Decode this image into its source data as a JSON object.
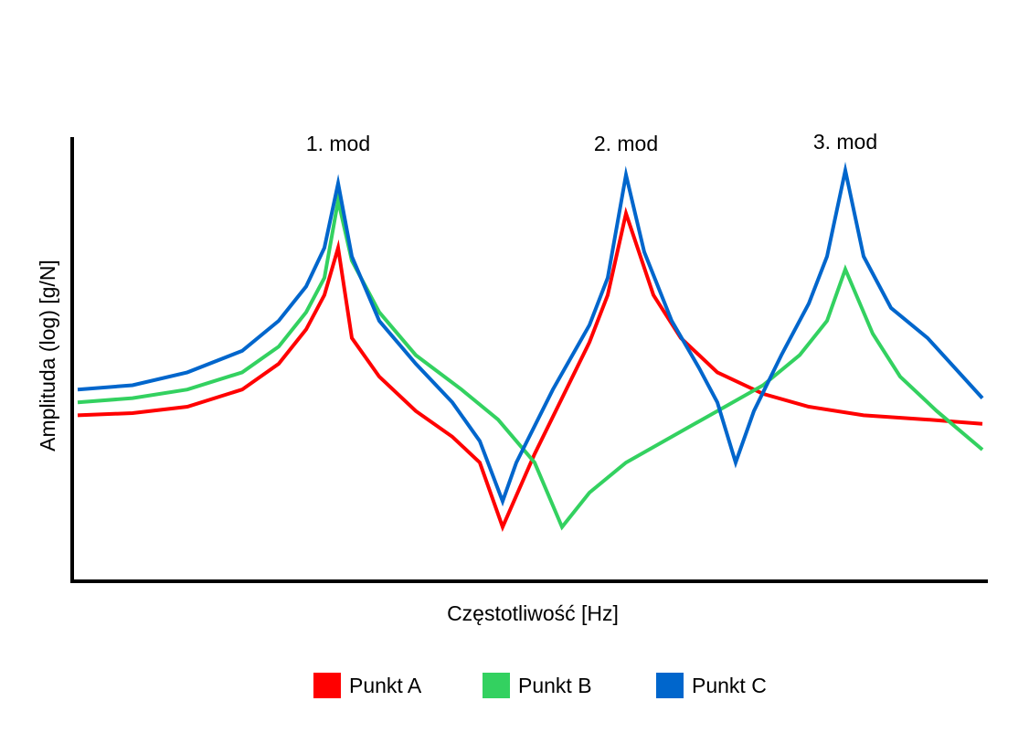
{
  "chart_data": {
    "type": "line",
    "title": "",
    "xlabel": "Częstotliwość [Hz]",
    "ylabel": "Amplituda (log) [g/N]",
    "x_ticks": "none",
    "y_ticks": "none",
    "grid": false,
    "legend_position": "bottom-center",
    "annotations": [
      {
        "text": "1. mod",
        "x": 0.285
      },
      {
        "text": "2. mod",
        "x": 0.6
      },
      {
        "text": "3. mod",
        "x": 0.84
      }
    ],
    "series": [
      {
        "name": "Punkt A",
        "color": "#ff0000",
        "points": [
          [
            0.0,
            0.38
          ],
          [
            0.06,
            0.385
          ],
          [
            0.12,
            0.4
          ],
          [
            0.18,
            0.44
          ],
          [
            0.22,
            0.5
          ],
          [
            0.25,
            0.58
          ],
          [
            0.27,
            0.66
          ],
          [
            0.285,
            0.77
          ],
          [
            0.3,
            0.56
          ],
          [
            0.33,
            0.47
          ],
          [
            0.37,
            0.39
          ],
          [
            0.41,
            0.33
          ],
          [
            0.44,
            0.27
          ],
          [
            0.465,
            0.12
          ],
          [
            0.5,
            0.29
          ],
          [
            0.53,
            0.42
          ],
          [
            0.56,
            0.55
          ],
          [
            0.58,
            0.66
          ],
          [
            0.6,
            0.85
          ],
          [
            0.63,
            0.66
          ],
          [
            0.66,
            0.56
          ],
          [
            0.7,
            0.48
          ],
          [
            0.75,
            0.43
          ],
          [
            0.8,
            0.4
          ],
          [
            0.86,
            0.38
          ],
          [
            0.93,
            0.37
          ],
          [
            0.99,
            0.36
          ]
        ]
      },
      {
        "name": "Punkt B",
        "color": "#33d160",
        "points": [
          [
            0.0,
            0.41
          ],
          [
            0.06,
            0.42
          ],
          [
            0.12,
            0.44
          ],
          [
            0.18,
            0.48
          ],
          [
            0.22,
            0.54
          ],
          [
            0.25,
            0.62
          ],
          [
            0.27,
            0.7
          ],
          [
            0.285,
            0.88
          ],
          [
            0.3,
            0.74
          ],
          [
            0.33,
            0.62
          ],
          [
            0.37,
            0.52
          ],
          [
            0.42,
            0.44
          ],
          [
            0.46,
            0.37
          ],
          [
            0.5,
            0.27
          ],
          [
            0.53,
            0.12
          ],
          [
            0.56,
            0.2
          ],
          [
            0.6,
            0.27
          ],
          [
            0.65,
            0.33
          ],
          [
            0.7,
            0.39
          ],
          [
            0.75,
            0.45
          ],
          [
            0.79,
            0.52
          ],
          [
            0.82,
            0.6
          ],
          [
            0.84,
            0.72
          ],
          [
            0.87,
            0.57
          ],
          [
            0.9,
            0.47
          ],
          [
            0.94,
            0.39
          ],
          [
            0.99,
            0.3
          ]
        ]
      },
      {
        "name": "Punkt C",
        "color": "#0066cc",
        "points": [
          [
            0.0,
            0.44
          ],
          [
            0.06,
            0.45
          ],
          [
            0.12,
            0.48
          ],
          [
            0.18,
            0.53
          ],
          [
            0.22,
            0.6
          ],
          [
            0.25,
            0.68
          ],
          [
            0.27,
            0.77
          ],
          [
            0.285,
            0.92
          ],
          [
            0.3,
            0.75
          ],
          [
            0.33,
            0.6
          ],
          [
            0.37,
            0.5
          ],
          [
            0.41,
            0.41
          ],
          [
            0.44,
            0.32
          ],
          [
            0.465,
            0.18
          ],
          [
            0.48,
            0.27
          ],
          [
            0.52,
            0.44
          ],
          [
            0.56,
            0.59
          ],
          [
            0.58,
            0.7
          ],
          [
            0.6,
            0.94
          ],
          [
            0.62,
            0.76
          ],
          [
            0.65,
            0.6
          ],
          [
            0.68,
            0.49
          ],
          [
            0.7,
            0.41
          ],
          [
            0.72,
            0.27
          ],
          [
            0.74,
            0.39
          ],
          [
            0.77,
            0.52
          ],
          [
            0.8,
            0.64
          ],
          [
            0.82,
            0.75
          ],
          [
            0.84,
            0.95
          ],
          [
            0.86,
            0.75
          ],
          [
            0.89,
            0.63
          ],
          [
            0.93,
            0.56
          ],
          [
            0.99,
            0.42
          ]
        ]
      }
    ]
  }
}
